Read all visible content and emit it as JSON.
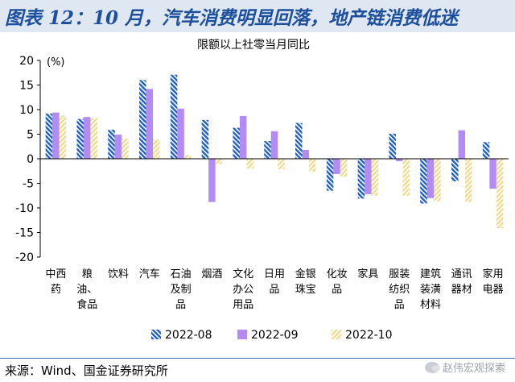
{
  "figure": {
    "title": "图表 12：10 月，汽车消费明显回落，地产链消费低迷",
    "source": "来源：Wind、国金证券研究所",
    "watermark": "赵伟宏观探索"
  },
  "chart_data": {
    "type": "bar",
    "title": "限额以上社零当月同比",
    "ylabel": "(%)",
    "ylim": [
      -20,
      20
    ],
    "yticks": [
      20,
      15,
      10,
      5,
      0,
      -5,
      -10,
      -15,
      -20
    ],
    "grid": false,
    "legend_position": "bottom",
    "categories": [
      [
        "中西",
        "药"
      ],
      [
        "粮",
        "油、",
        "食品"
      ],
      [
        "饮料"
      ],
      [
        "汽车"
      ],
      [
        "石油",
        "及制",
        "品"
      ],
      [
        "烟酒"
      ],
      [
        "文化",
        "办公",
        "用品"
      ],
      [
        "日用",
        "品"
      ],
      [
        "金银",
        "珠宝"
      ],
      [
        "化妆",
        "品"
      ],
      [
        "家具"
      ],
      [
        "服装",
        "纺织",
        "品"
      ],
      [
        "建筑",
        "装潢",
        "材料"
      ],
      [
        "通讯",
        "器材"
      ],
      [
        "家用",
        "电器"
      ]
    ],
    "series": [
      {
        "name": "2022-08",
        "color": "#1f5fc2",
        "pattern": "diagonal-blue",
        "values": [
          9.2,
          8.1,
          5.9,
          16.0,
          17.1,
          7.9,
          6.3,
          3.6,
          7.3,
          -6.5,
          -8.1,
          5.1,
          -9.1,
          -4.6,
          3.4
        ]
      },
      {
        "name": "2022-09",
        "color": "#b38bf3",
        "pattern": "solid",
        "values": [
          9.4,
          8.5,
          4.9,
          14.2,
          10.2,
          -8.8,
          8.7,
          5.6,
          1.8,
          -3.1,
          -7.2,
          -0.5,
          -8.0,
          5.8,
          -6.1
        ]
      },
      {
        "name": "2022-10",
        "color": "#f0d98a",
        "pattern": "diagonal-yellow",
        "values": [
          8.8,
          8.3,
          4.1,
          3.9,
          0.8,
          -1.1,
          -2.0,
          -2.1,
          -2.6,
          -3.7,
          -7.5,
          -7.5,
          -8.7,
          -8.8,
          -14.1
        ]
      }
    ]
  }
}
